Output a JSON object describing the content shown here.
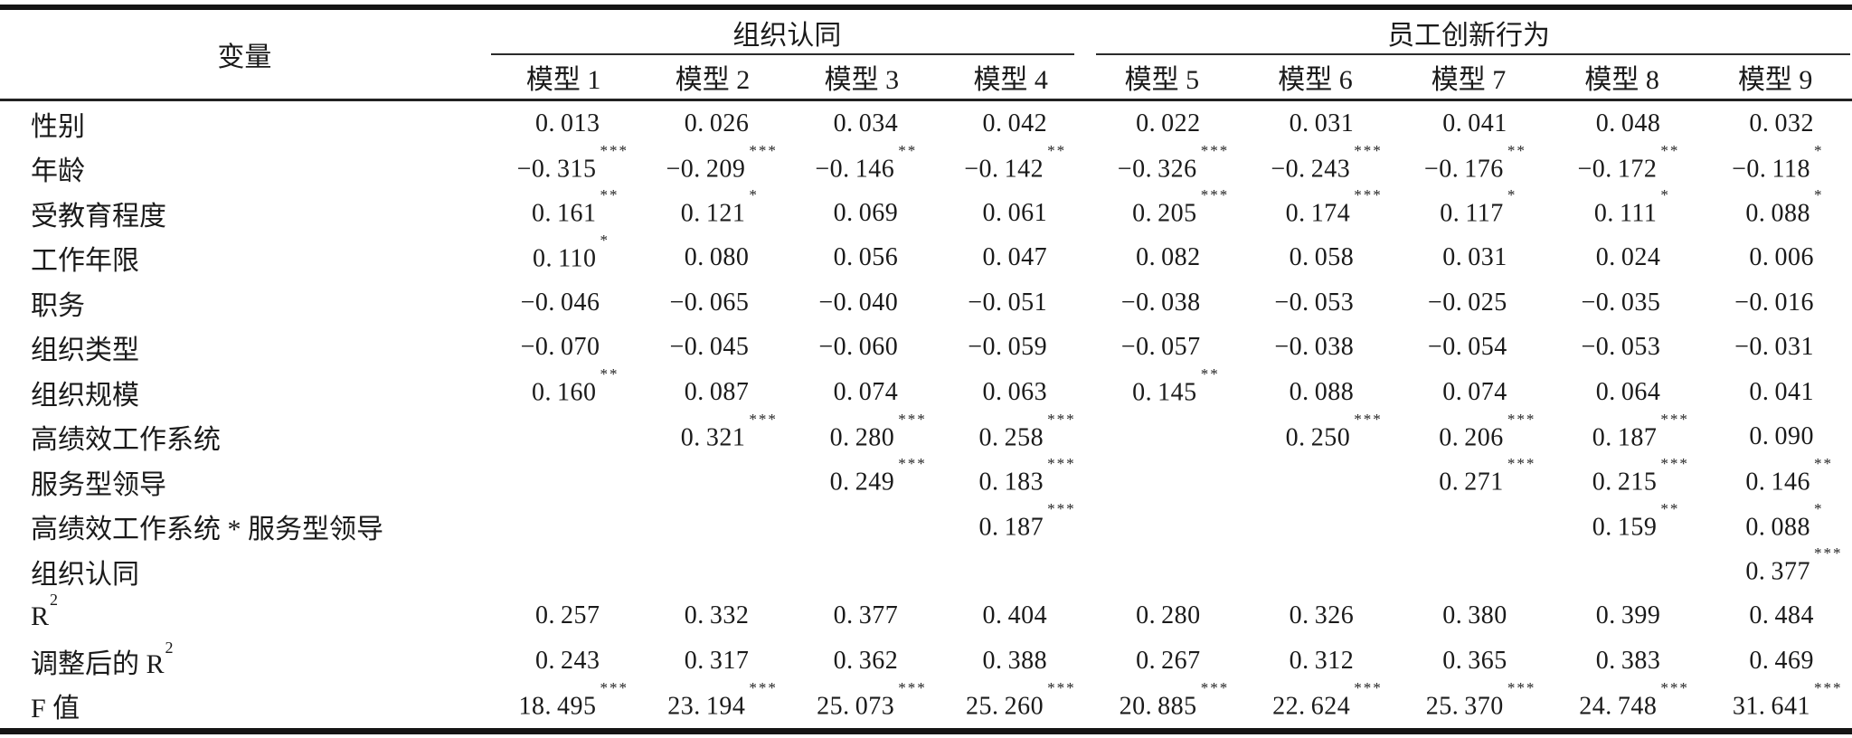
{
  "page": {
    "background": "#ffffff",
    "text_color": "#1a1a1a",
    "rule_color": "#151515"
  },
  "table": {
    "variable_header": "变量",
    "groups": [
      {
        "label": "组织认同",
        "span": 4
      },
      {
        "label": "员工创新行为",
        "span": 5
      }
    ],
    "model_headers": [
      "模型 1",
      "模型 2",
      "模型 3",
      "模型 4",
      "模型 5",
      "模型 6",
      "模型 7",
      "模型 8",
      "模型 9"
    ],
    "rows": [
      {
        "label": "性别",
        "label_sup": "",
        "values": [
          {
            "v": "0.013",
            "s": ""
          },
          {
            "v": "0.026",
            "s": ""
          },
          {
            "v": "0.034",
            "s": ""
          },
          {
            "v": "0.042",
            "s": ""
          },
          {
            "v": "0.022",
            "s": ""
          },
          {
            "v": "0.031",
            "s": ""
          },
          {
            "v": "0.041",
            "s": ""
          },
          {
            "v": "0.048",
            "s": ""
          },
          {
            "v": "0.032",
            "s": ""
          }
        ]
      },
      {
        "label": "年龄",
        "label_sup": "",
        "values": [
          {
            "v": "−0.315",
            "s": "***"
          },
          {
            "v": "−0.209",
            "s": "***"
          },
          {
            "v": "−0.146",
            "s": "**"
          },
          {
            "v": "−0.142",
            "s": "**"
          },
          {
            "v": "−0.326",
            "s": "***"
          },
          {
            "v": "−0.243",
            "s": "***"
          },
          {
            "v": "−0.176",
            "s": "**"
          },
          {
            "v": "−0.172",
            "s": "**"
          },
          {
            "v": "−0.118",
            "s": "*"
          }
        ]
      },
      {
        "label": "受教育程度",
        "label_sup": "",
        "values": [
          {
            "v": "0.161",
            "s": "**"
          },
          {
            "v": "0.121",
            "s": "*"
          },
          {
            "v": "0.069",
            "s": ""
          },
          {
            "v": "0.061",
            "s": ""
          },
          {
            "v": "0.205",
            "s": "***"
          },
          {
            "v": "0.174",
            "s": "***"
          },
          {
            "v": "0.117",
            "s": "*"
          },
          {
            "v": "0.111",
            "s": "*"
          },
          {
            "v": "0.088",
            "s": "*"
          }
        ]
      },
      {
        "label": "工作年限",
        "label_sup": "",
        "values": [
          {
            "v": "0.110",
            "s": "*"
          },
          {
            "v": "0.080",
            "s": ""
          },
          {
            "v": "0.056",
            "s": ""
          },
          {
            "v": "0.047",
            "s": ""
          },
          {
            "v": "0.082",
            "s": ""
          },
          {
            "v": "0.058",
            "s": ""
          },
          {
            "v": "0.031",
            "s": ""
          },
          {
            "v": "0.024",
            "s": ""
          },
          {
            "v": "0.006",
            "s": ""
          }
        ]
      },
      {
        "label": "职务",
        "label_sup": "",
        "values": [
          {
            "v": "−0.046",
            "s": ""
          },
          {
            "v": "−0.065",
            "s": ""
          },
          {
            "v": "−0.040",
            "s": ""
          },
          {
            "v": "−0.051",
            "s": ""
          },
          {
            "v": "−0.038",
            "s": ""
          },
          {
            "v": "−0.053",
            "s": ""
          },
          {
            "v": "−0.025",
            "s": ""
          },
          {
            "v": "−0.035",
            "s": ""
          },
          {
            "v": "−0.016",
            "s": ""
          }
        ]
      },
      {
        "label": "组织类型",
        "label_sup": "",
        "values": [
          {
            "v": "−0.070",
            "s": ""
          },
          {
            "v": "−0.045",
            "s": ""
          },
          {
            "v": "−0.060",
            "s": ""
          },
          {
            "v": "−0.059",
            "s": ""
          },
          {
            "v": "−0.057",
            "s": ""
          },
          {
            "v": "−0.038",
            "s": ""
          },
          {
            "v": "−0.054",
            "s": ""
          },
          {
            "v": "−0.053",
            "s": ""
          },
          {
            "v": "−0.031",
            "s": ""
          }
        ]
      },
      {
        "label": "组织规模",
        "label_sup": "",
        "values": [
          {
            "v": "0.160",
            "s": "**"
          },
          {
            "v": "0.087",
            "s": ""
          },
          {
            "v": "0.074",
            "s": ""
          },
          {
            "v": "0.063",
            "s": ""
          },
          {
            "v": "0.145",
            "s": "**"
          },
          {
            "v": "0.088",
            "s": ""
          },
          {
            "v": "0.074",
            "s": ""
          },
          {
            "v": "0.064",
            "s": ""
          },
          {
            "v": "0.041",
            "s": ""
          }
        ]
      },
      {
        "label": "高绩效工作系统",
        "label_sup": "",
        "values": [
          null,
          {
            "v": "0.321",
            "s": "***"
          },
          {
            "v": "0.280",
            "s": "***"
          },
          {
            "v": "0.258",
            "s": "***"
          },
          null,
          {
            "v": "0.250",
            "s": "***"
          },
          {
            "v": "0.206",
            "s": "***"
          },
          {
            "v": "0.187",
            "s": "***"
          },
          {
            "v": "0.090",
            "s": ""
          }
        ]
      },
      {
        "label": "服务型领导",
        "label_sup": "",
        "values": [
          null,
          null,
          {
            "v": "0.249",
            "s": "***"
          },
          {
            "v": "0.183",
            "s": "***"
          },
          null,
          null,
          {
            "v": "0.271",
            "s": "***"
          },
          {
            "v": "0.215",
            "s": "***"
          },
          {
            "v": "0.146",
            "s": "**"
          }
        ]
      },
      {
        "label": "高绩效工作系统 * 服务型领导",
        "label_sup": "",
        "values": [
          null,
          null,
          null,
          {
            "v": "0.187",
            "s": "***"
          },
          null,
          null,
          null,
          {
            "v": "0.159",
            "s": "**"
          },
          {
            "v": "0.088",
            "s": "*"
          }
        ]
      },
      {
        "label": "组织认同",
        "label_sup": "",
        "values": [
          null,
          null,
          null,
          null,
          null,
          null,
          null,
          null,
          {
            "v": "0.377",
            "s": "***"
          }
        ]
      },
      {
        "label": "R",
        "label_sup": "2",
        "values": [
          {
            "v": "0.257",
            "s": ""
          },
          {
            "v": "0.332",
            "s": ""
          },
          {
            "v": "0.377",
            "s": ""
          },
          {
            "v": "0.404",
            "s": ""
          },
          {
            "v": "0.280",
            "s": ""
          },
          {
            "v": "0.326",
            "s": ""
          },
          {
            "v": "0.380",
            "s": ""
          },
          {
            "v": "0.399",
            "s": ""
          },
          {
            "v": "0.484",
            "s": ""
          }
        ]
      },
      {
        "label": "调整后的 R",
        "label_sup": "2",
        "values": [
          {
            "v": "0.243",
            "s": ""
          },
          {
            "v": "0.317",
            "s": ""
          },
          {
            "v": "0.362",
            "s": ""
          },
          {
            "v": "0.388",
            "s": ""
          },
          {
            "v": "0.267",
            "s": ""
          },
          {
            "v": "0.312",
            "s": ""
          },
          {
            "v": "0.365",
            "s": ""
          },
          {
            "v": "0.383",
            "s": ""
          },
          {
            "v": "0.469",
            "s": ""
          }
        ]
      },
      {
        "label": "F 值",
        "label_sup": "",
        "values": [
          {
            "v": "18.495",
            "s": "***"
          },
          {
            "v": "23.194",
            "s": "***"
          },
          {
            "v": "25.073",
            "s": "***"
          },
          {
            "v": "25.260",
            "s": "***"
          },
          {
            "v": "20.885",
            "s": "***"
          },
          {
            "v": "22.624",
            "s": "***"
          },
          {
            "v": "25.370",
            "s": "***"
          },
          {
            "v": "24.748",
            "s": "***"
          },
          {
            "v": "31.641",
            "s": "***"
          }
        ]
      }
    ]
  }
}
